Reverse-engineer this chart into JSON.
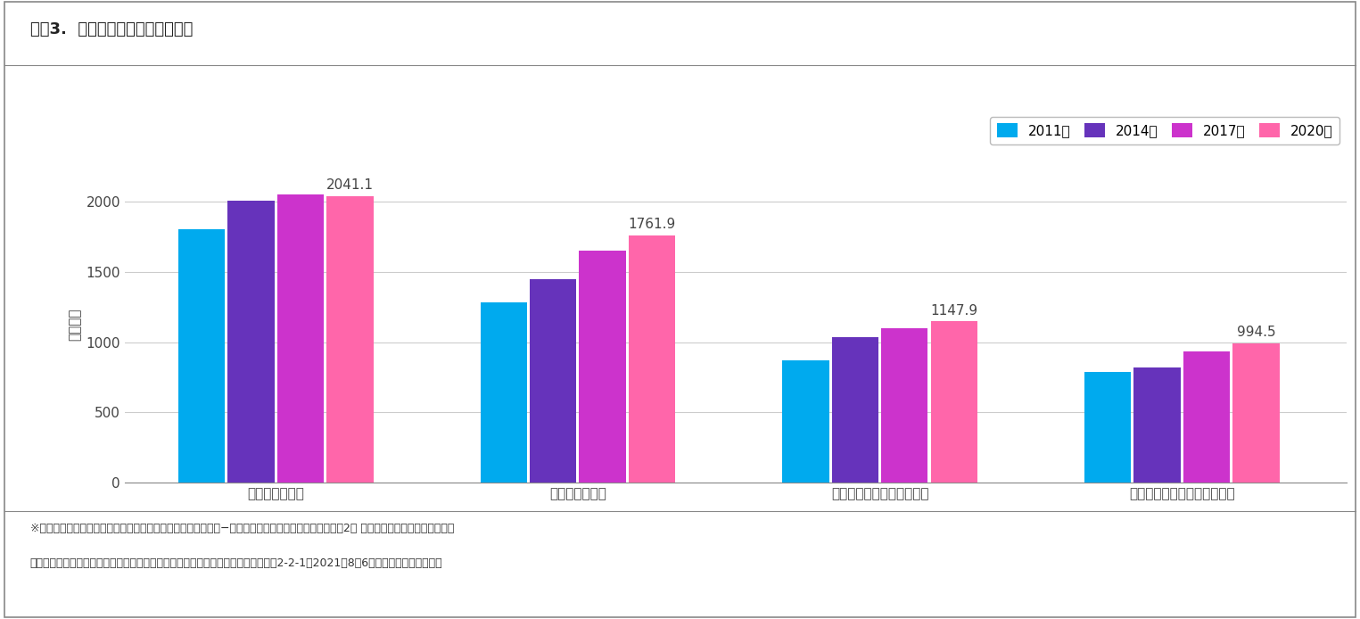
{
  "title": "図表3.  主な疾患の総患者数の推移",
  "ylabel": "（万人）",
  "categories": [
    "循環器系の疾患",
    "消化器系の疾患",
    "内分泌，栄養及び代謝疾患",
    "筋骨格系及び結合組織の疾患"
  ],
  "years": [
    "2011年",
    "2014年",
    "2017年",
    "2020年"
  ],
  "colors": [
    "#00AAEE",
    "#6633BB",
    "#CC33CC",
    "#FF66AA"
  ],
  "values": [
    [
      1806.0,
      2007.0,
      2049.0,
      2041.1
    ],
    [
      1284.0,
      1449.0,
      1651.0,
      1761.9
    ],
    [
      868.0,
      1035.0,
      1099.0,
      1147.9
    ],
    [
      790.0,
      820.0,
      935.0,
      994.5
    ]
  ],
  "ann_values": [
    2041.1,
    1761.9,
    1147.9,
    994.5
  ],
  "ylim": [
    0,
    2250
  ],
  "yticks": [
    0,
    500,
    1000,
    1500,
    2000
  ],
  "footnote_line1": "※「患者調査」（厚生労働省）と「総患者数の推移（現行推計−新推計（案）），傷病大分類別」（第2回 患者調査における「平均診療間",
  "footnote_line2": "　隔」及び「総患者数」の算出方法等の見直しに関するワーキンググループ，資料2-2-1，2021年8月6日）をもとに、筆者作成",
  "bar_width": 0.17,
  "background_color": "#FFFFFF",
  "border_color": "#888888",
  "grid_color": "#CCCCCC",
  "title_color": "#222222",
  "tick_color": "#444444",
  "ann_color": "#444444"
}
